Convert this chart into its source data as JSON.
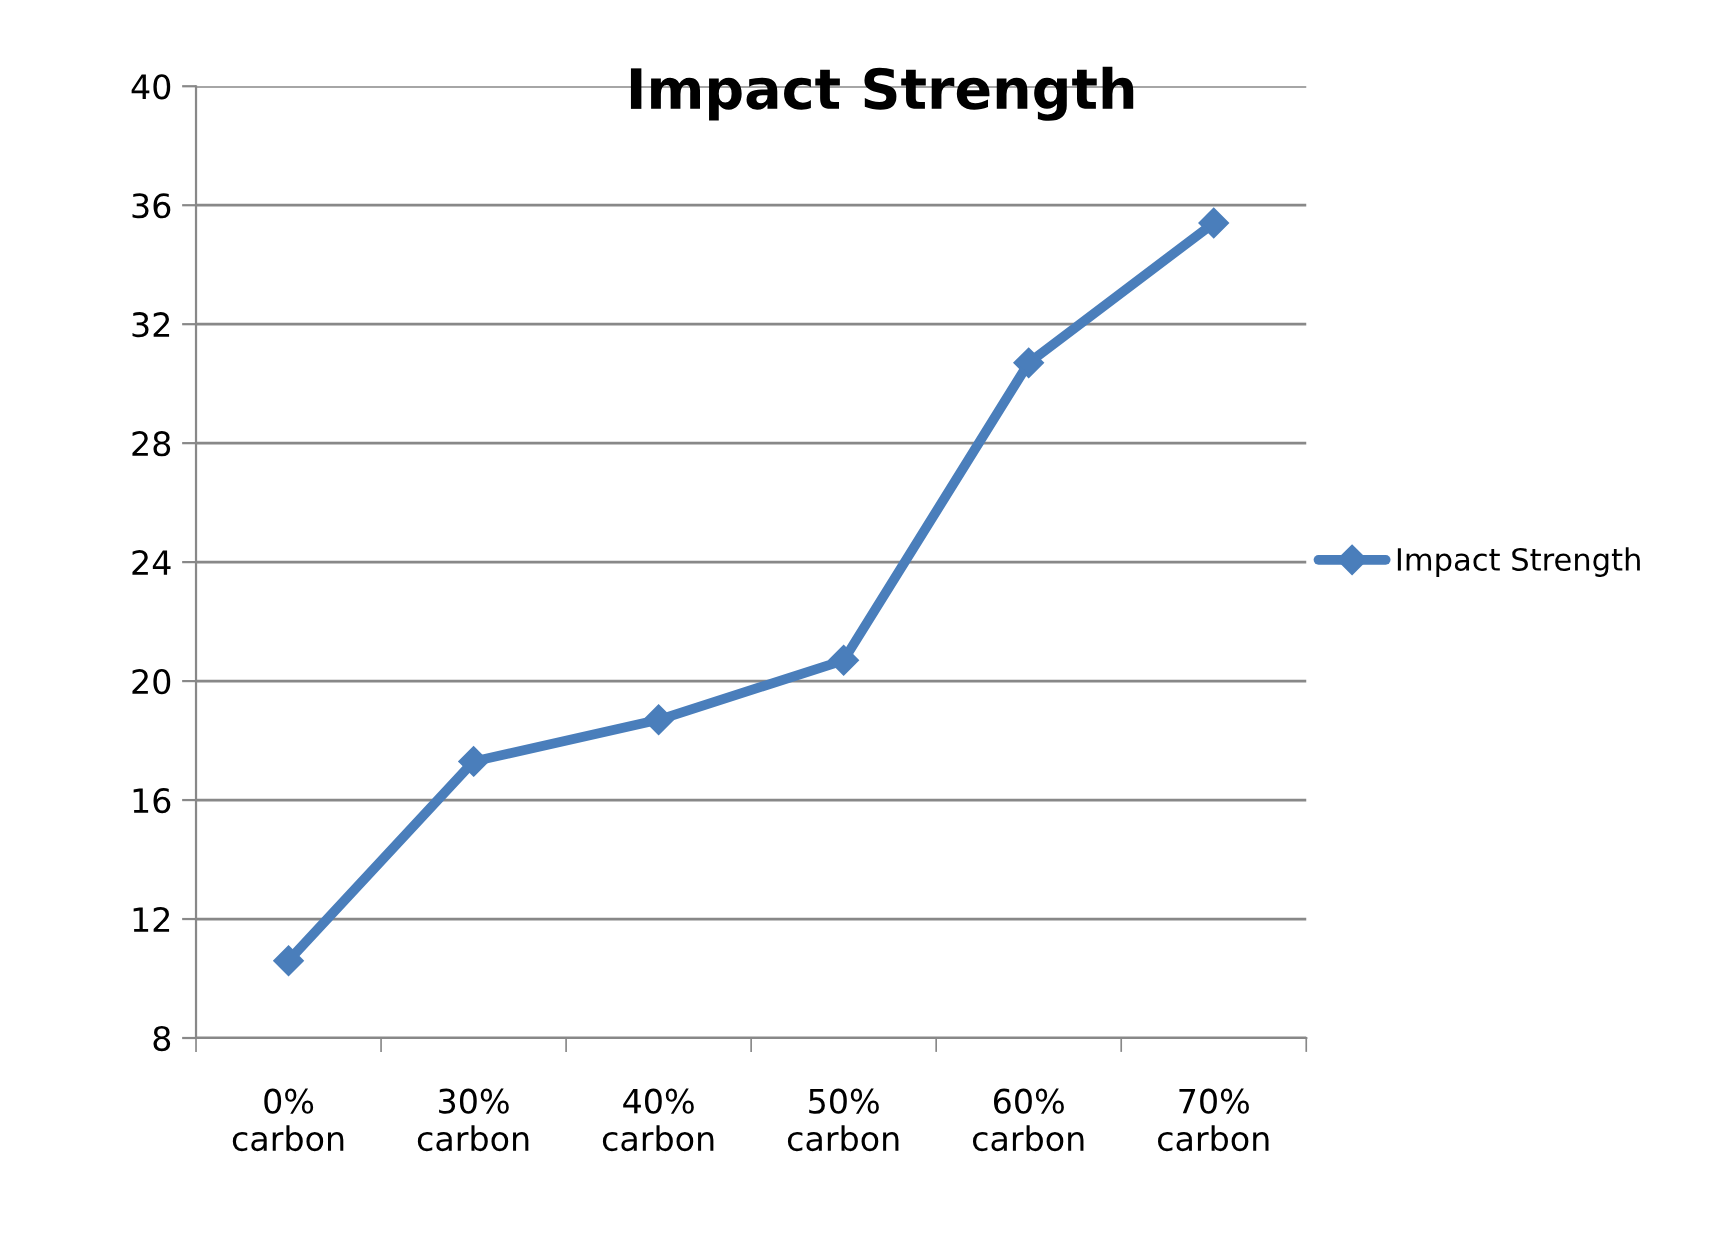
{
  "chart_data": {
    "type": "line",
    "title": "Impact Strength",
    "categories": [
      "0%\ncarbon",
      "30%\ncarbon",
      "40%\ncarbon",
      "50%\ncarbon",
      "60%\ncarbon",
      "70%\ncarbon"
    ],
    "series": [
      {
        "name": "Impact Strength",
        "color": "#4a7ebb",
        "values": [
          10.6,
          17.3,
          18.7,
          20.7,
          30.7,
          35.4
        ]
      }
    ],
    "ylim": [
      8,
      40
    ],
    "yticks": [
      8,
      12,
      16,
      20,
      24,
      28,
      32,
      36,
      40
    ],
    "grid": "y",
    "legend": "right",
    "marker": "diamond",
    "line_style": "solid"
  }
}
